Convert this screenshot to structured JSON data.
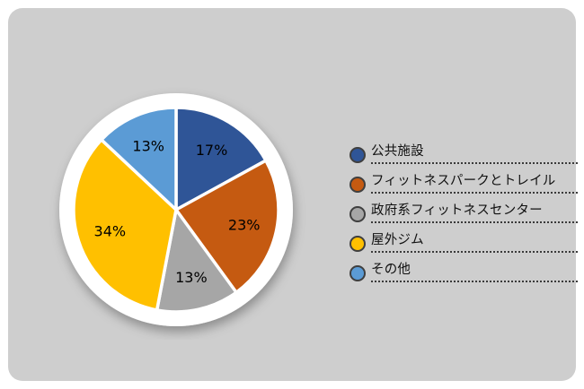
{
  "chart_data": {
    "type": "pie",
    "title": "",
    "labels": [
      "公共施設",
      "フィットネスパークとトレイル",
      "政府系フィットネスセンター",
      "屋外ジム",
      "その他"
    ],
    "values": [
      17,
      23,
      13,
      34,
      13
    ],
    "data_labels": [
      "17%",
      "23%",
      "13%",
      "34%",
      "13%"
    ],
    "colors": [
      "#2f5597",
      "#c55a11",
      "#a6a6a6",
      "#ffc000",
      "#5b9bd5"
    ],
    "start_angle_deg": 0,
    "direction": "clockwise",
    "legend_position": "right",
    "data_label_color": "#000000",
    "slice_separator_color": "#ffffff",
    "plate_ring_color": "#ffffff",
    "background_color": "#cecece"
  }
}
